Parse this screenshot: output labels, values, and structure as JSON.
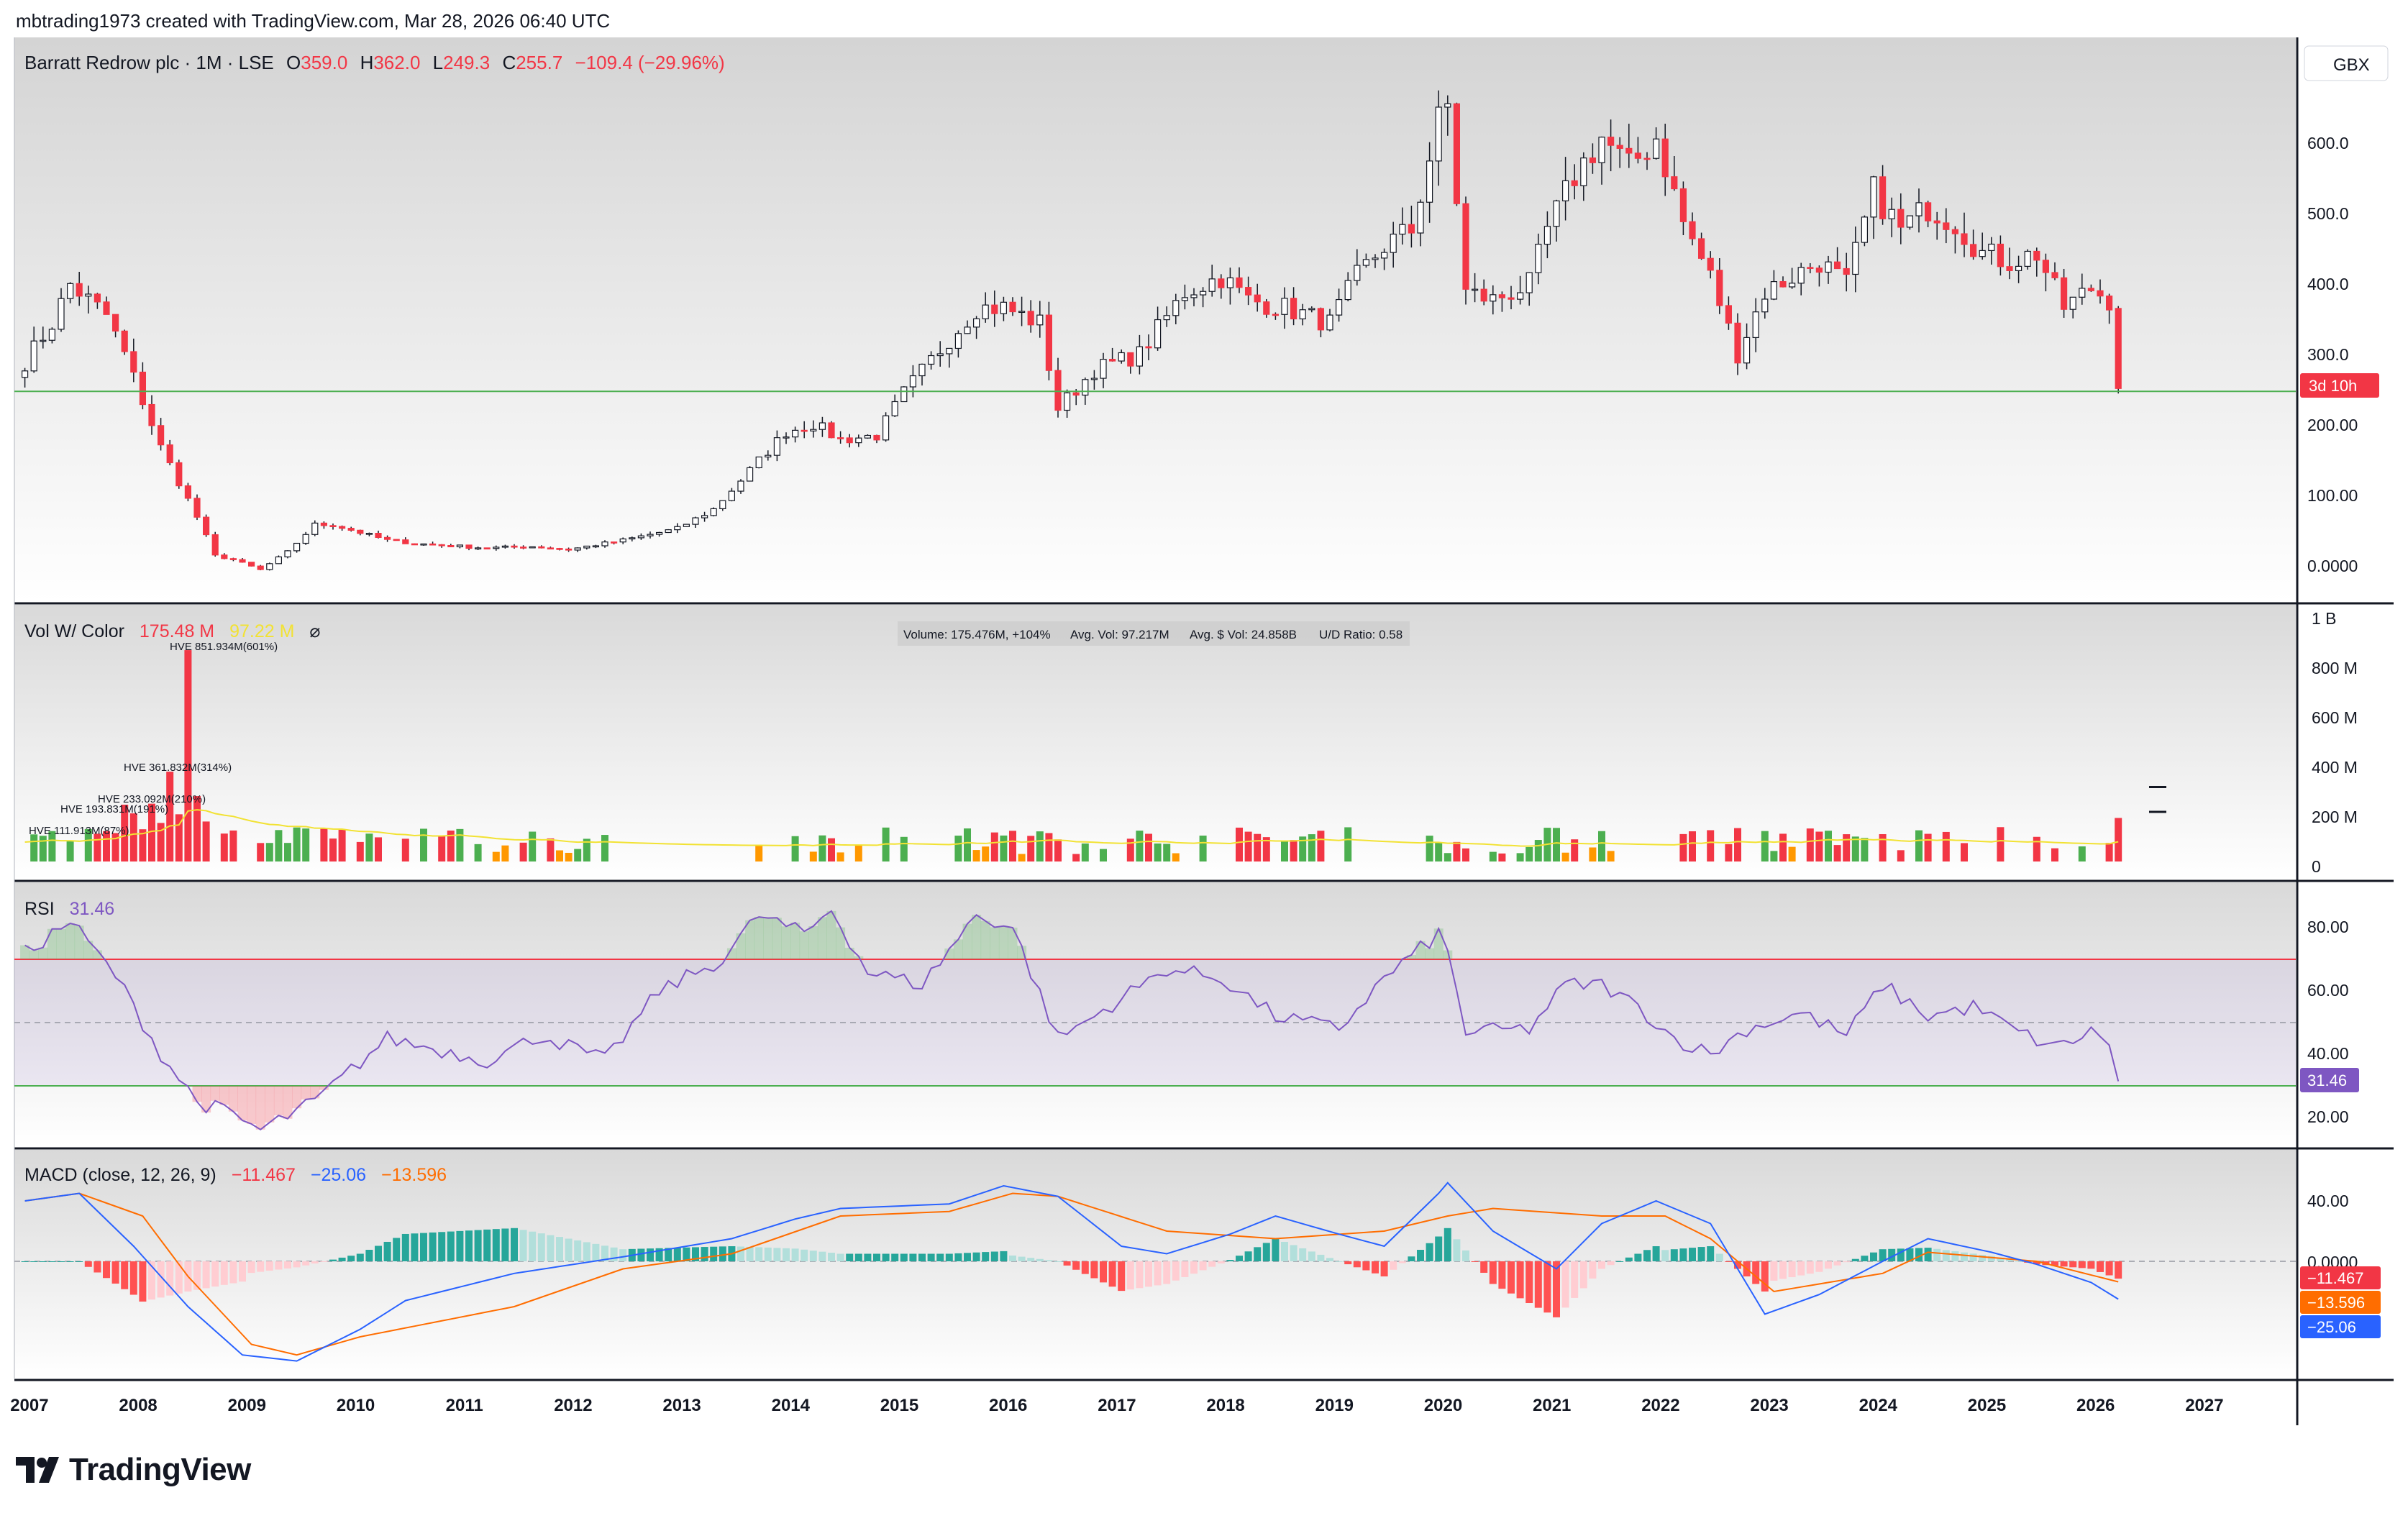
{
  "header": {
    "created_line": "mbtrading1973 created with TradingView.com, Mar 28, 2026 06:40 UTC"
  },
  "main_pane": {
    "symbol": "Barratt Redrow plc · 1M · LSE",
    "o_label": "O",
    "o_value": "359.0",
    "h_label": "H",
    "h_value": "362.0",
    "l_label": "L",
    "l_value": "249.3",
    "c_label": "C",
    "c_value": "255.7",
    "change": "−109.4 (−29.96%)",
    "currency": "GBX",
    "countdown": "3d 10h",
    "y_ticks": [
      "600.0",
      "500.0",
      "400.0",
      "300.0",
      "200.00",
      "100.00",
      "0.0000"
    ],
    "support_level": 252
  },
  "volume_pane": {
    "title": "Vol W/ Color",
    "value1": "175.48 M",
    "value2": "97.22 M",
    "eye": "⌀",
    "info_volume": "Volume: 175.476M, +104%",
    "info_avg": "Avg. Vol: 97.217M",
    "info_dollar": "Avg. $ Vol: 24.858B",
    "info_ud": "U/D Ratio: 0.58",
    "hve_labels": [
      "HVE 851.934M(601%)",
      "HVE 361.832M(314%)",
      "HVE 233.092M(210%)",
      "HVE 193.831M(191%)",
      "HVE 111.913M(87%)"
    ],
    "y_ticks": [
      "1 B",
      "800 M",
      "600 M",
      "400 M",
      "200 M",
      "0"
    ]
  },
  "rsi_pane": {
    "title": "RSI",
    "value": "31.46",
    "y_ticks": [
      "80.00",
      "60.00",
      "40.00",
      "20.00"
    ],
    "badge": "31.46"
  },
  "macd_pane": {
    "title": "MACD (close, 12, 26, 9)",
    "v1": "−11.467",
    "v2": "−25.06",
    "v3": "−13.596",
    "y_ticks": [
      "40.00",
      "0.0000"
    ],
    "badges": [
      "−11.467",
      "−13.596",
      "−25.06"
    ]
  },
  "x_axis": {
    "years": [
      "2007",
      "2008",
      "2009",
      "2010",
      "2011",
      "2012",
      "2013",
      "2014",
      "2015",
      "2016",
      "2017",
      "2018",
      "2019",
      "2020",
      "2021",
      "2022",
      "2023",
      "2024",
      "2025",
      "2026",
      "2027"
    ]
  },
  "brand": {
    "name": "TradingView"
  },
  "colors": {
    "up": "#ffffff",
    "down": "#f23645",
    "vol_up": "#4caf50",
    "vol_down": "#f23645",
    "vol_neutral": "#ff9800",
    "rsi": "#7e57c2",
    "macd": "#2962ff",
    "signal": "#ff6d00",
    "support": "#4caf50"
  },
  "chart_data": [
    {
      "type": "candlestick",
      "title": "Barratt Redrow plc · 1M · LSE",
      "ylabel": "GBX",
      "ylim": [
        -15,
        700
      ],
      "x_anchor_closes": [
        [
          "2006-12",
          290
        ],
        [
          "2007-03",
          340
        ],
        [
          "2007-05",
          390
        ],
        [
          "2007-07",
          370
        ],
        [
          "2007-09",
          350
        ],
        [
          "2007-11",
          300
        ],
        [
          "2008-01",
          240
        ],
        [
          "2008-03",
          180
        ],
        [
          "2008-05",
          135
        ],
        [
          "2008-07",
          90
        ],
        [
          "2008-09",
          40
        ],
        [
          "2008-11",
          35
        ],
        [
          "2009-02",
          22
        ],
        [
          "2009-05",
          45
        ],
        [
          "2009-08",
          80
        ],
        [
          "2009-10",
          80
        ],
        [
          "2010-04",
          60
        ],
        [
          "2010-08",
          55
        ],
        [
          "2011-03",
          50
        ],
        [
          "2011-08",
          52
        ],
        [
          "2011-12",
          48
        ],
        [
          "2012-06",
          60
        ],
        [
          "2012-12",
          75
        ],
        [
          "2013-04",
          100
        ],
        [
          "2013-08",
          150
        ],
        [
          "2013-12",
          200
        ],
        [
          "2014-03",
          210
        ],
        [
          "2014-06",
          190
        ],
        [
          "2014-10",
          195
        ],
        [
          "2015-01",
          250
        ],
        [
          "2015-06",
          320
        ],
        [
          "2015-09",
          360
        ],
        [
          "2015-12",
          360
        ],
        [
          "2016-04",
          340
        ],
        [
          "2016-06",
          230
        ],
        [
          "2016-10",
          280
        ],
        [
          "2017-03",
          300
        ],
        [
          "2017-08",
          380
        ],
        [
          "2017-12",
          400
        ],
        [
          "2018-03",
          370
        ],
        [
          "2018-07",
          360
        ],
        [
          "2018-12",
          340
        ],
        [
          "2019-03",
          400
        ],
        [
          "2019-06",
          440
        ],
        [
          "2019-09",
          460
        ],
        [
          "2019-12",
          600
        ],
        [
          "2020-01",
          620
        ],
        [
          "2020-03",
          380
        ],
        [
          "2020-06",
          370
        ],
        [
          "2020-10",
          390
        ],
        [
          "2020-12",
          460
        ],
        [
          "2021-03",
          530
        ],
        [
          "2021-06",
          580
        ],
        [
          "2021-09",
          540
        ],
        [
          "2021-12",
          580
        ],
        [
          "2022-03",
          470
        ],
        [
          "2022-06",
          400
        ],
        [
          "2022-09",
          300
        ],
        [
          "2022-12",
          380
        ],
        [
          "2023-03",
          400
        ],
        [
          "2023-06",
          420
        ],
        [
          "2023-09",
          390
        ],
        [
          "2023-12",
          510
        ],
        [
          "2024-03",
          460
        ],
        [
          "2024-06",
          490
        ],
        [
          "2024-09",
          470
        ],
        [
          "2024-12",
          430
        ],
        [
          "2025-03",
          420
        ],
        [
          "2025-06",
          430
        ],
        [
          "2025-09",
          360
        ],
        [
          "2025-12",
          385
        ],
        [
          "2026-02",
          370
        ],
        [
          "2026-03",
          255.7
        ]
      ],
      "last_open": 359.0,
      "last_high": 362.0,
      "last_low": 249.3,
      "last_close": 255.7,
      "horizontal_line": 252
    },
    {
      "type": "bar",
      "title": "Vol W/ Color",
      "ylabel": "",
      "ylim": [
        0,
        1000
      ],
      "y_unit": "M",
      "highlights": [
        [
          "2008-06",
          852
        ],
        [
          "2008-04",
          362
        ],
        [
          "2008-02",
          233
        ],
        [
          "2007-12",
          194
        ],
        [
          "2007-08",
          112
        ],
        [
          "2026-03",
          175.5
        ]
      ],
      "average_last": 97.2
    },
    {
      "type": "line",
      "title": "RSI",
      "ylim": [
        10,
        90
      ],
      "bands": [
        30,
        50,
        70
      ],
      "x": [
        "2006-12",
        "2007-05",
        "2007-10",
        "2008-03",
        "2008-07",
        "2008-10",
        "2009-02",
        "2009-08",
        "2010-04",
        "2011-03",
        "2011-09",
        "2012-04",
        "2012-10",
        "2013-05",
        "2013-09",
        "2014-02",
        "2014-05",
        "2014-09",
        "2015-03",
        "2015-09",
        "2016-01",
        "2016-06",
        "2016-10",
        "2017-06",
        "2017-12",
        "2018-06",
        "2019-01",
        "2019-06",
        "2019-12",
        "2020-01",
        "2020-03",
        "2020-10",
        "2021-02",
        "2021-06",
        "2021-10",
        "2022-02",
        "2022-06",
        "2022-10",
        "2023-04",
        "2023-09",
        "2024-01",
        "2024-06",
        "2024-11",
        "2025-04",
        "2025-08",
        "2025-12",
        "2026-02",
        "2026-03"
      ],
      "y": [
        72,
        82,
        65,
        40,
        25,
        22,
        16,
        25,
        45,
        38,
        46,
        38,
        60,
        70,
        84,
        78,
        86,
        66,
        62,
        84,
        80,
        45,
        52,
        67,
        64,
        52,
        48,
        64,
        78,
        72,
        47,
        48,
        62,
        62,
        55,
        45,
        40,
        48,
        53,
        46,
        62,
        52,
        55,
        47,
        42,
        47,
        44,
        31.46
      ]
    },
    {
      "type": "line",
      "title": "MACD (close, 12, 26, 9)",
      "ylim": [
        -80,
        60
      ],
      "series": [
        {
          "name": "MACD",
          "x": [
            "2006-12",
            "2007-06",
            "2007-12",
            "2008-06",
            "2008-12",
            "2009-06",
            "2010-01",
            "2010-06",
            "2011-06",
            "2012-06",
            "2013-06",
            "2014-01",
            "2014-06",
            "2015-06",
            "2015-12",
            "2016-06",
            "2017-01",
            "2017-06",
            "2018-01",
            "2018-06",
            "2019-01",
            "2019-06",
            "2019-12",
            "2020-01",
            "2020-06",
            "2021-01",
            "2021-06",
            "2021-12",
            "2022-06",
            "2022-12",
            "2023-06",
            "2024-01",
            "2024-06",
            "2025-01",
            "2025-06",
            "2025-12",
            "2026-03"
          ],
          "y": [
            40,
            45,
            10,
            -30,
            -62,
            -66,
            -45,
            -26,
            -8,
            3,
            15,
            28,
            35,
            38,
            50,
            43,
            10,
            5,
            18,
            30,
            18,
            10,
            45,
            52,
            20,
            -5,
            25,
            40,
            25,
            -35,
            -22,
            0,
            15,
            6,
            -2,
            -14,
            -25.06
          ]
        },
        {
          "name": "Signal",
          "x": [
            "2006-12",
            "2007-06",
            "2008-01",
            "2008-06",
            "2009-01",
            "2009-06",
            "2010-01",
            "2011-06",
            "2012-06",
            "2013-06",
            "2014-06",
            "2015-06",
            "2016-01",
            "2016-06",
            "2017-06",
            "2018-06",
            "2019-06",
            "2020-01",
            "2020-06",
            "2021-06",
            "2022-01",
            "2022-06",
            "2023-01",
            "2024-01",
            "2024-06",
            "2025-06",
            "2026-03"
          ],
          "y": [
            40,
            45,
            30,
            -10,
            -55,
            -62,
            -50,
            -30,
            -5,
            5,
            30,
            33,
            45,
            43,
            20,
            15,
            20,
            30,
            35,
            30,
            30,
            15,
            -20,
            -8,
            6,
            0,
            -13.596
          ]
        },
        {
          "name": "Histogram",
          "last": -11.467
        }
      ]
    }
  ]
}
